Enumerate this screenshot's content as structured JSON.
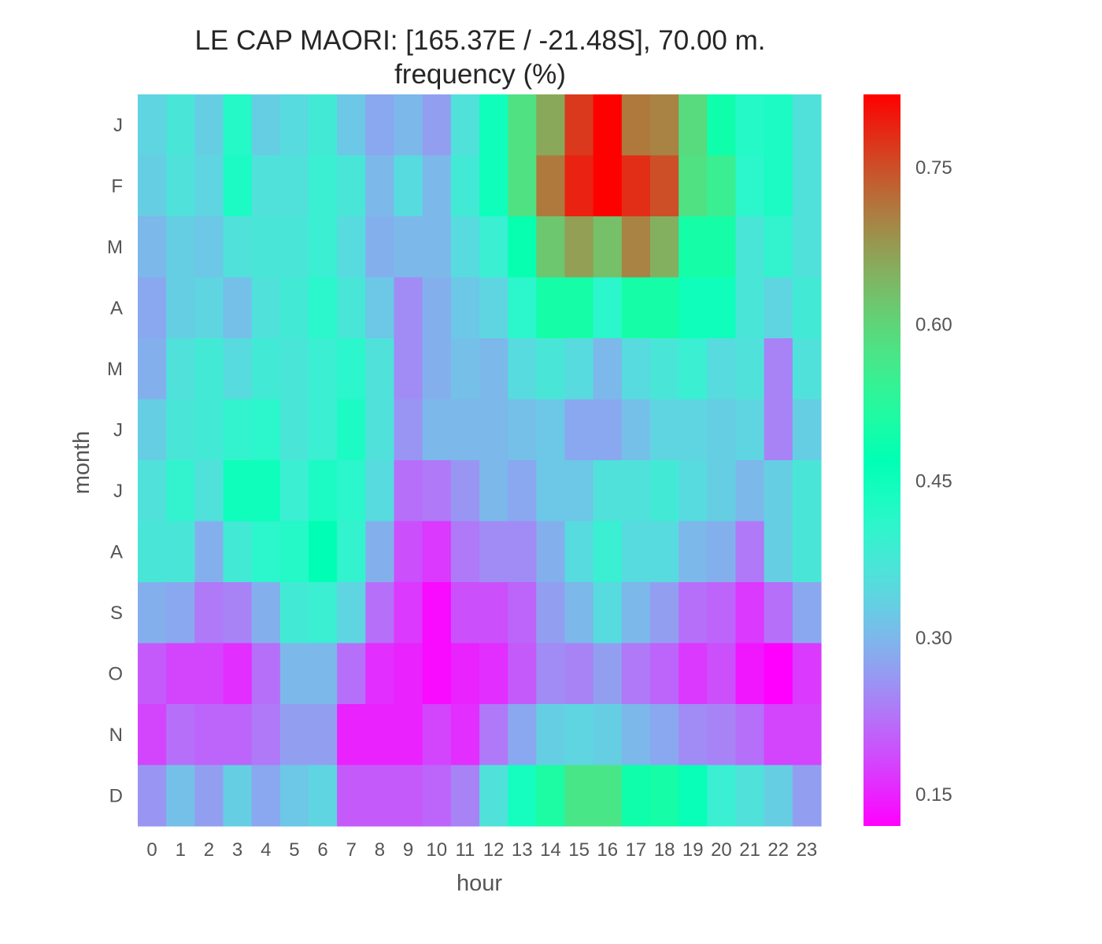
{
  "chart_data": {
    "type": "heatmap",
    "title": "LE CAP MAORI: [165.37E / -21.48S], 70.00 m.",
    "subtitle": "frequency (%)",
    "xlabel": "hour",
    "ylabel": "month",
    "x": [
      "0",
      "1",
      "2",
      "3",
      "4",
      "5",
      "6",
      "7",
      "8",
      "9",
      "10",
      "11",
      "12",
      "13",
      "14",
      "15",
      "16",
      "17",
      "18",
      "19",
      "20",
      "21",
      "22",
      "23"
    ],
    "y": [
      "J",
      "F",
      "M",
      "A",
      "M",
      "J",
      "J",
      "A",
      "S",
      "O",
      "N",
      "D"
    ],
    "values": [
      [
        0.34,
        0.37,
        0.33,
        0.42,
        0.33,
        0.35,
        0.38,
        0.32,
        0.28,
        0.3,
        0.27,
        0.36,
        0.45,
        0.58,
        0.66,
        0.77,
        0.82,
        0.71,
        0.7,
        0.59,
        0.49,
        0.42,
        0.43,
        0.36
      ],
      [
        0.33,
        0.36,
        0.34,
        0.43,
        0.36,
        0.36,
        0.39,
        0.37,
        0.3,
        0.35,
        0.3,
        0.38,
        0.45,
        0.58,
        0.71,
        0.79,
        0.83,
        0.78,
        0.75,
        0.58,
        0.55,
        0.41,
        0.43,
        0.36
      ],
      [
        0.3,
        0.33,
        0.32,
        0.36,
        0.37,
        0.37,
        0.39,
        0.35,
        0.29,
        0.3,
        0.3,
        0.35,
        0.39,
        0.48,
        0.62,
        0.67,
        0.63,
        0.7,
        0.65,
        0.5,
        0.5,
        0.37,
        0.4,
        0.36
      ],
      [
        0.28,
        0.33,
        0.34,
        0.31,
        0.36,
        0.38,
        0.41,
        0.37,
        0.32,
        0.25,
        0.29,
        0.32,
        0.34,
        0.41,
        0.5,
        0.5,
        0.41,
        0.5,
        0.5,
        0.45,
        0.45,
        0.37,
        0.34,
        0.38
      ],
      [
        0.29,
        0.36,
        0.38,
        0.35,
        0.38,
        0.37,
        0.39,
        0.41,
        0.36,
        0.25,
        0.29,
        0.31,
        0.3,
        0.35,
        0.37,
        0.35,
        0.3,
        0.35,
        0.37,
        0.39,
        0.35,
        0.36,
        0.24,
        0.36
      ],
      [
        0.33,
        0.37,
        0.38,
        0.4,
        0.41,
        0.37,
        0.39,
        0.43,
        0.36,
        0.26,
        0.3,
        0.3,
        0.3,
        0.31,
        0.32,
        0.28,
        0.28,
        0.31,
        0.34,
        0.34,
        0.33,
        0.34,
        0.24,
        0.33
      ],
      [
        0.36,
        0.4,
        0.36,
        0.45,
        0.45,
        0.39,
        0.43,
        0.41,
        0.35,
        0.22,
        0.23,
        0.26,
        0.3,
        0.28,
        0.32,
        0.32,
        0.36,
        0.36,
        0.38,
        0.35,
        0.33,
        0.3,
        0.33,
        0.37
      ],
      [
        0.37,
        0.37,
        0.29,
        0.38,
        0.41,
        0.42,
        0.47,
        0.4,
        0.29,
        0.19,
        0.17,
        0.23,
        0.25,
        0.25,
        0.29,
        0.35,
        0.39,
        0.35,
        0.35,
        0.3,
        0.29,
        0.23,
        0.33,
        0.37
      ],
      [
        0.29,
        0.28,
        0.23,
        0.24,
        0.29,
        0.38,
        0.39,
        0.34,
        0.22,
        0.17,
        0.13,
        0.19,
        0.19,
        0.21,
        0.27,
        0.3,
        0.35,
        0.3,
        0.27,
        0.22,
        0.21,
        0.17,
        0.22,
        0.28
      ],
      [
        0.2,
        0.18,
        0.18,
        0.16,
        0.22,
        0.3,
        0.3,
        0.22,
        0.16,
        0.15,
        0.13,
        0.15,
        0.16,
        0.2,
        0.25,
        0.24,
        0.27,
        0.23,
        0.21,
        0.17,
        0.19,
        0.14,
        0.12,
        0.17
      ],
      [
        0.18,
        0.22,
        0.21,
        0.21,
        0.23,
        0.27,
        0.27,
        0.15,
        0.15,
        0.15,
        0.18,
        0.16,
        0.23,
        0.28,
        0.33,
        0.34,
        0.33,
        0.3,
        0.28,
        0.25,
        0.24,
        0.22,
        0.18,
        0.18
      ],
      [
        0.26,
        0.31,
        0.27,
        0.33,
        0.28,
        0.32,
        0.34,
        0.2,
        0.2,
        0.2,
        0.21,
        0.24,
        0.36,
        0.44,
        0.51,
        0.57,
        0.57,
        0.49,
        0.5,
        0.46,
        0.39,
        0.36,
        0.33,
        0.27
      ]
    ],
    "colorbar": {
      "ticks": [
        "0.15",
        "0.30",
        "0.45",
        "0.60",
        "0.75"
      ],
      "vmin": 0.12,
      "vmax": 0.82,
      "colormap": "rainbow"
    },
    "grid": false
  }
}
